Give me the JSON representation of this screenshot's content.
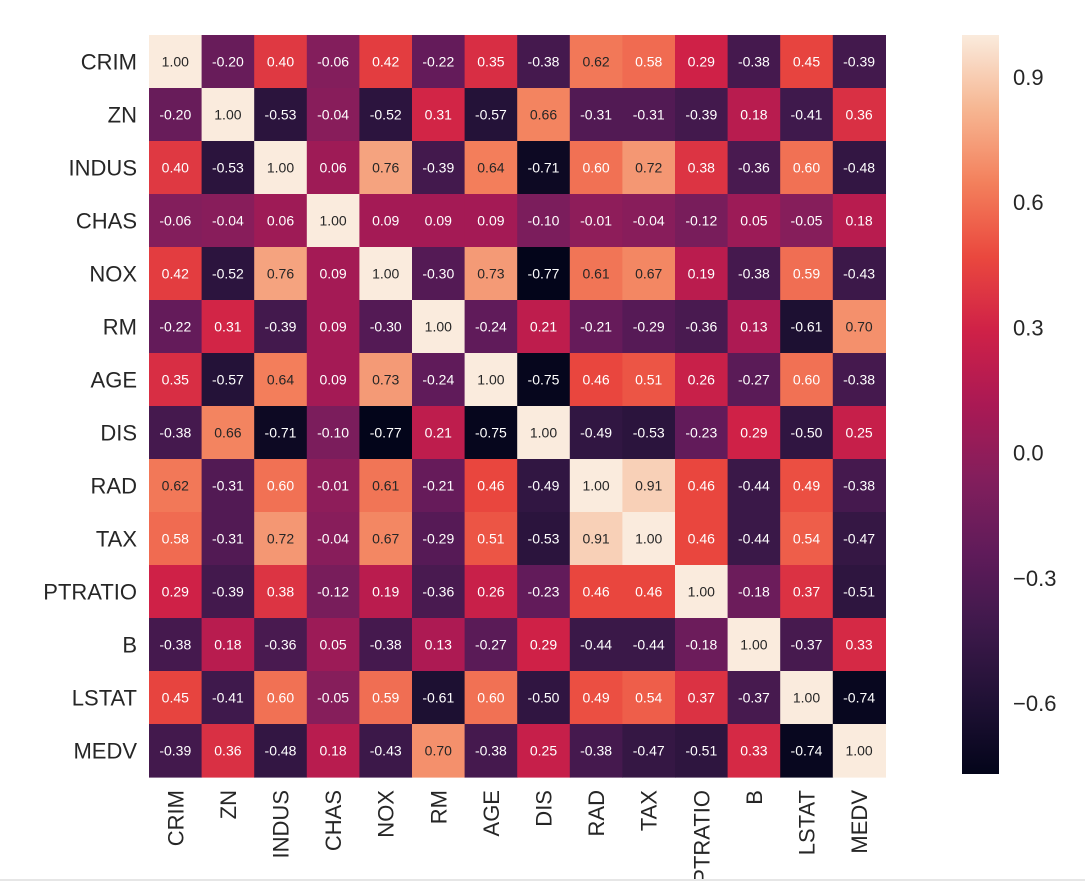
{
  "chart_data": {
    "type": "heatmap",
    "title": "",
    "xlabel": "",
    "ylabel": "",
    "labels": [
      "CRIM",
      "ZN",
      "INDUS",
      "CHAS",
      "NOX",
      "RM",
      "AGE",
      "DIS",
      "RAD",
      "TAX",
      "PTRATIO",
      "B",
      "LSTAT",
      "MEDV"
    ],
    "matrix": [
      [
        1.0,
        -0.2,
        0.4,
        -0.06,
        0.42,
        -0.22,
        0.35,
        -0.38,
        0.62,
        0.58,
        0.29,
        -0.38,
        0.45,
        -0.39
      ],
      [
        -0.2,
        1.0,
        -0.53,
        -0.04,
        -0.52,
        0.31,
        -0.57,
        0.66,
        -0.31,
        -0.31,
        -0.39,
        0.18,
        -0.41,
        0.36
      ],
      [
        0.4,
        -0.53,
        1.0,
        0.06,
        0.76,
        -0.39,
        0.64,
        -0.71,
        0.6,
        0.72,
        0.38,
        -0.36,
        0.6,
        -0.48
      ],
      [
        -0.06,
        -0.04,
        0.06,
        1.0,
        0.09,
        0.09,
        0.09,
        -0.1,
        -0.01,
        -0.04,
        -0.12,
        0.05,
        -0.05,
        0.18
      ],
      [
        0.42,
        -0.52,
        0.76,
        0.09,
        1.0,
        -0.3,
        0.73,
        -0.77,
        0.61,
        0.67,
        0.19,
        -0.38,
        0.59,
        -0.43
      ],
      [
        -0.22,
        0.31,
        -0.39,
        0.09,
        -0.3,
        1.0,
        -0.24,
        0.21,
        -0.21,
        -0.29,
        -0.36,
        0.13,
        -0.61,
        0.7
      ],
      [
        0.35,
        -0.57,
        0.64,
        0.09,
        0.73,
        -0.24,
        1.0,
        -0.75,
        0.46,
        0.51,
        0.26,
        -0.27,
        0.6,
        -0.38
      ],
      [
        -0.38,
        0.66,
        -0.71,
        -0.1,
        -0.77,
        0.21,
        -0.75,
        1.0,
        -0.49,
        -0.53,
        -0.23,
        0.29,
        -0.5,
        0.25
      ],
      [
        0.62,
        -0.31,
        0.6,
        -0.01,
        0.61,
        -0.21,
        0.46,
        -0.49,
        1.0,
        0.91,
        0.46,
        -0.44,
        0.49,
        -0.38
      ],
      [
        0.58,
        -0.31,
        0.72,
        -0.04,
        0.67,
        -0.29,
        0.51,
        -0.53,
        0.91,
        1.0,
        0.46,
        -0.44,
        0.54,
        -0.47
      ],
      [
        0.29,
        -0.39,
        0.38,
        -0.12,
        0.19,
        -0.36,
        0.26,
        -0.23,
        0.46,
        0.46,
        1.0,
        -0.18,
        0.37,
        -0.51
      ],
      [
        -0.38,
        0.18,
        -0.36,
        0.05,
        -0.38,
        0.13,
        -0.27,
        0.29,
        -0.44,
        -0.44,
        -0.18,
        1.0,
        -0.37,
        0.33
      ],
      [
        0.45,
        -0.41,
        0.6,
        -0.05,
        0.59,
        -0.61,
        0.6,
        -0.5,
        0.49,
        0.54,
        0.37,
        -0.37,
        1.0,
        -0.74
      ],
      [
        -0.39,
        0.36,
        -0.48,
        0.18,
        -0.43,
        0.7,
        -0.38,
        0.25,
        -0.38,
        -0.47,
        -0.51,
        0.33,
        -0.74,
        1.0
      ]
    ],
    "value_format": "2 decimals",
    "colormap": "rocket",
    "vmin": -0.77,
    "vmax": 1.0,
    "colorbar_ticks": [
      0.9,
      0.6,
      0.3,
      0.0,
      -0.3,
      -0.6
    ],
    "colorbar_tick_labels": [
      "0.9",
      "0.6",
      "0.3",
      "0.0",
      "−0.3",
      "−0.6"
    ],
    "legend": "colorbar-right"
  }
}
